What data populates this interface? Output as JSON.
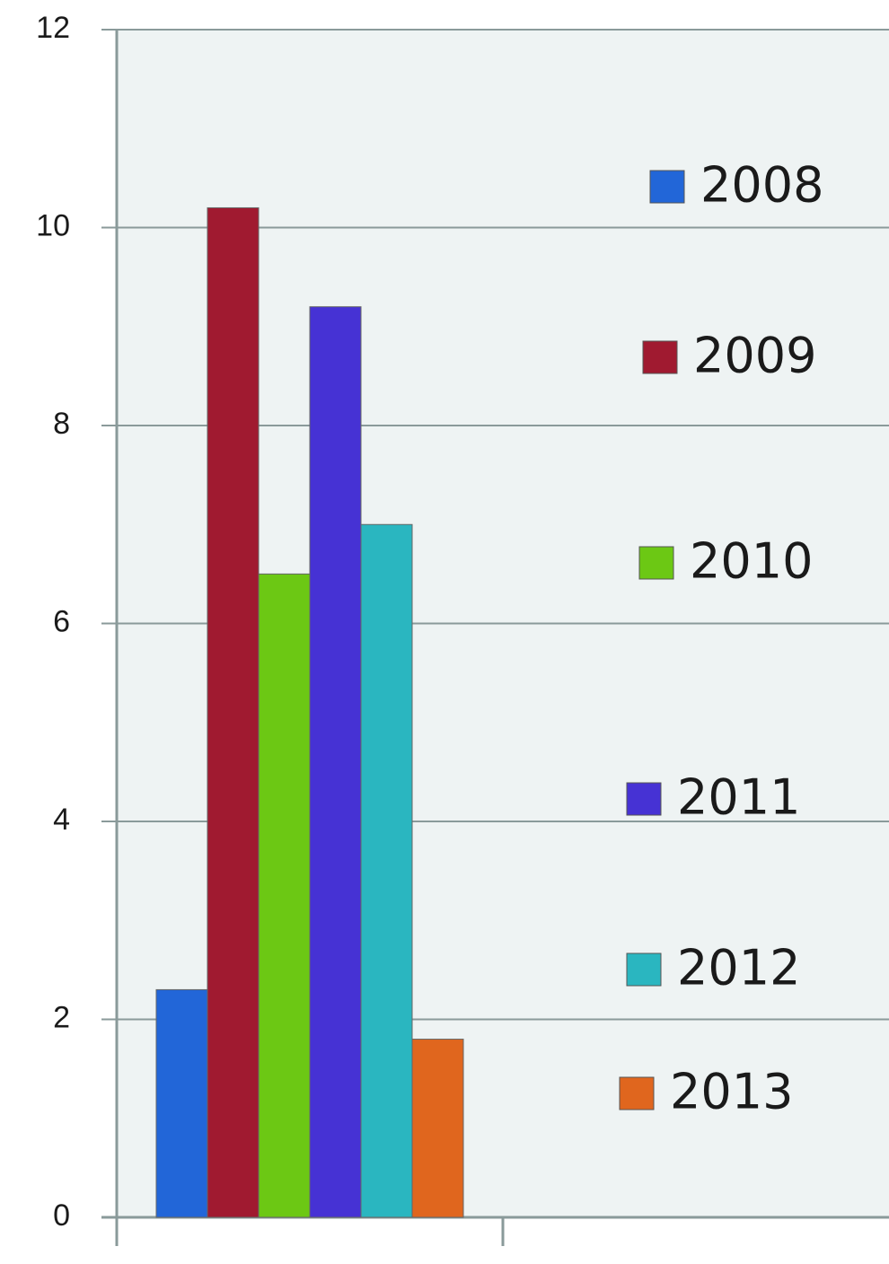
{
  "chart_data": {
    "type": "bar",
    "categories": [
      null
    ],
    "series": [
      {
        "name": "2008",
        "color": "#2266d8",
        "values": [
          2.3
        ]
      },
      {
        "name": "2009",
        "color": "#a01a30",
        "values": [
          10.2
        ]
      },
      {
        "name": "2010",
        "color": "#6cc814",
        "values": [
          6.5
        ]
      },
      {
        "name": "2011",
        "color": "#4632d4",
        "values": [
          9.2
        ]
      },
      {
        "name": "2012",
        "color": "#2ab6c0",
        "values": [
          7.0
        ]
      },
      {
        "name": "2013",
        "color": "#e0661e",
        "values": [
          1.8
        ]
      }
    ],
    "ylim": [
      0,
      12
    ],
    "yticks": [
      0,
      2,
      4,
      6,
      8,
      10,
      12
    ],
    "grid": true
  }
}
